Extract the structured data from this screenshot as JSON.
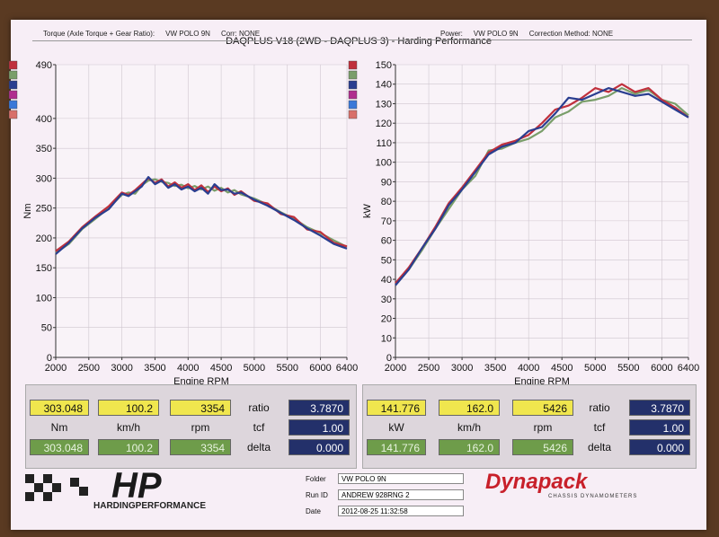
{
  "title": "DAQPLUS V18 (2WD - DAQPLUS 3) - Harding Performance",
  "series_colors": [
    "#c0303c",
    "#7a9e6a",
    "#2a3e90",
    "#b02e8e",
    "#3a78d8",
    "#d8706a"
  ],
  "chart_data": [
    {
      "type": "line",
      "header": {
        "label": "Torque (Axle Torque + Gear Ratio):",
        "vehicle": "VW POLO 9N",
        "corr": "Corr: NONE"
      },
      "xlabel": "Engine RPM",
      "ylabel": "Nm",
      "xlim": [
        2000,
        6400
      ],
      "ylim": [
        0,
        490
      ],
      "xticks": [
        "2000",
        "2500",
        "3000",
        "3500",
        "4000",
        "4500",
        "5000",
        "5500",
        "6000",
        "6400"
      ],
      "yticks": [
        "0",
        "50",
        "100",
        "150",
        "200",
        "250",
        "300",
        "350",
        "400",
        "490"
      ],
      "grid": true,
      "series": [
        {
          "color": "#7a9e6a",
          "x": [
            2000,
            2200,
            2400,
            2600,
            2800,
            3000,
            3100,
            3200,
            3300,
            3400,
            3500,
            3600,
            3700,
            3800,
            3900,
            4000,
            4100,
            4200,
            4300,
            4400,
            4500,
            4600,
            4700,
            4800,
            5000,
            5200,
            5400,
            5600,
            5800,
            6000,
            6200,
            6400
          ],
          "y": [
            175,
            190,
            215,
            232,
            250,
            272,
            276,
            274,
            288,
            296,
            298,
            294,
            292,
            287,
            289,
            283,
            287,
            281,
            286,
            279,
            284,
            276,
            280,
            273,
            266,
            256,
            243,
            232,
            218,
            208,
            196,
            185
          ]
        },
        {
          "color": "#c0303c",
          "x": [
            2000,
            2200,
            2400,
            2600,
            2800,
            3000,
            3100,
            3200,
            3300,
            3400,
            3500,
            3600,
            3700,
            3800,
            3900,
            4000,
            4100,
            4200,
            4300,
            4400,
            4500,
            4600,
            4700,
            4800,
            5000,
            5200,
            5400,
            5600,
            5800,
            6000,
            6200,
            6400
          ],
          "y": [
            178,
            194,
            218,
            236,
            253,
            276,
            272,
            280,
            290,
            300,
            292,
            298,
            286,
            293,
            284,
            290,
            280,
            288,
            277,
            286,
            278,
            283,
            272,
            278,
            262,
            258,
            240,
            235,
            214,
            210,
            192,
            186
          ]
        },
        {
          "color": "#2a3e90",
          "x": [
            2000,
            2200,
            2400,
            2600,
            2800,
            3000,
            3100,
            3200,
            3300,
            3400,
            3500,
            3600,
            3700,
            3800,
            3900,
            4000,
            4100,
            4200,
            4300,
            4400,
            4500,
            4600,
            4700,
            4800,
            5000,
            5200,
            5400,
            5600,
            5800,
            6000,
            6200,
            6400
          ],
          "y": [
            173,
            192,
            216,
            234,
            248,
            274,
            270,
            278,
            286,
            302,
            290,
            296,
            284,
            290,
            281,
            286,
            278,
            284,
            274,
            290,
            280,
            281,
            274,
            276,
            264,
            254,
            242,
            230,
            216,
            204,
            190,
            182
          ]
        }
      ]
    },
    {
      "type": "line",
      "header": {
        "label": "Power:",
        "vehicle": "VW POLO 9N",
        "corr": "Correction Method: NONE"
      },
      "xlabel": "Engine RPM",
      "ylabel": "kW",
      "xlim": [
        2000,
        6400
      ],
      "ylim": [
        0,
        150
      ],
      "xticks": [
        "2000",
        "2500",
        "3000",
        "3500",
        "4000",
        "4500",
        "5000",
        "5500",
        "6000",
        "6400"
      ],
      "yticks": [
        "0",
        "10",
        "20",
        "30",
        "40",
        "50",
        "60",
        "70",
        "80",
        "90",
        "100",
        "110",
        "120",
        "130",
        "140",
        "150"
      ],
      "grid": true,
      "series": [
        {
          "color": "#7a9e6a",
          "x": [
            2000,
            2200,
            2400,
            2600,
            2800,
            3000,
            3200,
            3400,
            3600,
            3800,
            4000,
            4200,
            4400,
            4600,
            4800,
            5000,
            5200,
            5400,
            5600,
            5800,
            6000,
            6200,
            6400
          ],
          "y": [
            37,
            45,
            55,
            66,
            76,
            86,
            93,
            106,
            107,
            110,
            112,
            116,
            123,
            126,
            131,
            132,
            134,
            138,
            135,
            137,
            132,
            130,
            124
          ]
        },
        {
          "color": "#c0303c",
          "x": [
            2000,
            2200,
            2400,
            2600,
            2800,
            3000,
            3200,
            3400,
            3600,
            3800,
            4000,
            4200,
            4400,
            4600,
            4800,
            5000,
            5200,
            5400,
            5600,
            5800,
            6000,
            6200,
            6400
          ],
          "y": [
            38,
            46,
            56,
            67,
            79,
            87,
            96,
            105,
            109,
            111,
            114,
            120,
            127,
            129,
            133,
            138,
            136,
            140,
            136,
            138,
            132,
            128,
            123
          ]
        },
        {
          "color": "#2a3e90",
          "x": [
            2000,
            2200,
            2400,
            2600,
            2800,
            3000,
            3200,
            3400,
            3600,
            3800,
            4000,
            4200,
            4400,
            4600,
            4800,
            5000,
            5200,
            5400,
            5600,
            5800,
            6000,
            6200,
            6400
          ],
          "y": [
            37,
            45,
            56,
            66,
            78,
            86,
            95,
            104,
            108,
            110,
            116,
            118,
            125,
            133,
            132,
            135,
            138,
            136,
            134,
            135,
            131,
            127,
            123
          ]
        }
      ]
    }
  ],
  "panels": [
    {
      "row1": {
        "value": "303.048",
        "speed": "100.2",
        "rpm": "3354",
        "ratio_label": "ratio",
        "ratio": "3.7870"
      },
      "row2": {
        "unit": "Nm",
        "speed_unit": "km/h",
        "rpm_unit": "rpm",
        "tcf_label": "tcf",
        "tcf": "1.00"
      },
      "row3": {
        "value": "303.048",
        "speed": "100.2",
        "rpm": "3354",
        "delta_label": "delta",
        "delta": "0.000"
      }
    },
    {
      "row1": {
        "value": "141.776",
        "speed": "162.0",
        "rpm": "5426",
        "ratio_label": "ratio",
        "ratio": "3.7870"
      },
      "row2": {
        "unit": "kW",
        "speed_unit": "km/h",
        "rpm_unit": "rpm",
        "tcf_label": "tcf",
        "tcf": "1.00"
      },
      "row3": {
        "value": "141.776",
        "speed": "162.0",
        "rpm": "5426",
        "delta_label": "delta",
        "delta": "0.000"
      }
    }
  ],
  "footer": {
    "folder_label": "Folder",
    "folder": "VW POLO 9N",
    "run_label": "Run ID",
    "run": "ANDREW 928RNG 2",
    "date_label": "Date",
    "date": "2012-08-25 11:32:58",
    "hp_logo": "HP",
    "hp_text": "HARDINGPERFORMANCE",
    "dyna_logo": "Dynapack",
    "dyna_sub": "CHASSIS DYNAMOMETERS"
  }
}
